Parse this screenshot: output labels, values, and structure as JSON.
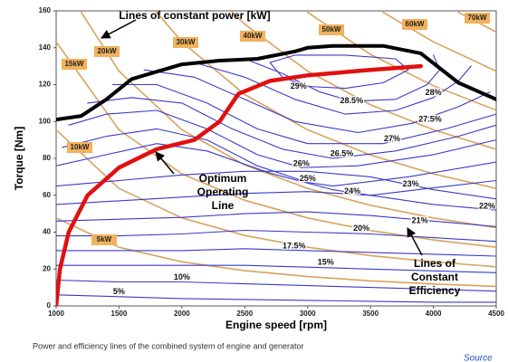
{
  "chart_data": {
    "type": "line",
    "title": "Lines of constant power [kW]",
    "x_label": "Engine speed [rpm]",
    "y_label": "Torque [Nm]",
    "caption": "Power and efficiency lines of the combined system of engine and generator",
    "source": "Source",
    "xlim": [
      1000,
      4500
    ],
    "ylim": [
      0,
      160
    ],
    "xticks": [
      1000,
      1500,
      2000,
      2500,
      3000,
      3500,
      4000,
      4500
    ],
    "yticks": [
      0,
      20,
      40,
      60,
      80,
      100,
      120,
      140,
      160
    ],
    "annotations": [
      [
        "Optimum",
        "Operating",
        "Line"
      ],
      [
        "Lines of",
        "Constant",
        "Efficiency"
      ]
    ],
    "max_torque": {
      "color": "#000000",
      "x": [
        1000,
        1200,
        1400,
        1600,
        1800,
        2000,
        2300,
        2600,
        2900,
        3000,
        3200,
        3600,
        3900,
        4200,
        4500
      ],
      "values": [
        101,
        103,
        112,
        123,
        127,
        131,
        133,
        134,
        138,
        140,
        141,
        141,
        137,
        121,
        112
      ]
    },
    "optimum_line": {
      "color": "#e01010",
      "x": [
        1000,
        1030,
        1100,
        1250,
        1500,
        1800,
        2100,
        2300,
        2450,
        2700,
        3000,
        3500,
        3900
      ],
      "values": [
        0,
        20,
        40,
        60,
        75,
        85,
        90,
        100,
        115,
        122,
        125,
        128,
        130
      ]
    },
    "power_lines": [
      {
        "name": "5kW",
        "color": "#d9a35c",
        "x": [
          1000,
          1500,
          2000,
          2500,
          3000,
          3500,
          4000,
          4500
        ],
        "values": [
          47.7,
          31.8,
          23.9,
          19.1,
          15.9,
          13.6,
          11.9,
          10.6
        ]
      },
      {
        "name": "10kW",
        "color": "#d9a35c",
        "x": [
          1000,
          1500,
          2000,
          2500,
          3000,
          3500,
          4000,
          4500
        ],
        "values": [
          95.5,
          63.7,
          47.7,
          38.2,
          31.8,
          27.3,
          23.9,
          21.2
        ]
      },
      {
        "name": "15kW",
        "color": "#d9a35c",
        "x": [
          1000,
          1500,
          2000,
          2500,
          3000,
          3500,
          4000,
          4500
        ],
        "values": [
          143.2,
          95.5,
          71.6,
          57.3,
          47.7,
          40.9,
          35.8,
          31.8
        ]
      },
      {
        "name": "20kW",
        "color": "#d9a35c",
        "x": [
          1200,
          1500,
          2000,
          2500,
          3000,
          3500,
          4000,
          4500
        ],
        "values": [
          159.2,
          127.3,
          95.5,
          76.4,
          63.7,
          54.6,
          47.7,
          42.4
        ]
      },
      {
        "name": "30kW",
        "color": "#d9a35c",
        "x": [
          1800,
          2000,
          2500,
          3000,
          3500,
          4000,
          4500
        ],
        "values": [
          159.2,
          143.2,
          114.6,
          95.5,
          81.8,
          71.6,
          63.7
        ]
      },
      {
        "name": "40kW",
        "color": "#d9a35c",
        "x": [
          2400,
          2500,
          3000,
          3500,
          4000,
          4500
        ],
        "values": [
          159.2,
          152.8,
          127.3,
          109.1,
          95.5,
          84.9
        ]
      },
      {
        "name": "50kW",
        "color": "#d9a35c",
        "x": [
          3000,
          3500,
          4000,
          4500
        ],
        "values": [
          159.2,
          136.4,
          119.4,
          106.1
        ]
      },
      {
        "name": "60kW",
        "color": "#d9a35c",
        "x": [
          3600,
          4000,
          4500
        ],
        "values": [
          159.2,
          143.2,
          127.3
        ]
      },
      {
        "name": "70kW",
        "color": "#d9a35c",
        "x": [
          4200,
          4500
        ],
        "values": [
          159.2,
          148.5
        ]
      }
    ],
    "efficiency_lines": [
      {
        "name": "5%",
        "color": "#3a3ac8",
        "x": [
          1000,
          1500,
          2000,
          2500,
          3000,
          3500,
          4000,
          4500
        ],
        "values": [
          6,
          5,
          4,
          3.5,
          3,
          2.5,
          2,
          2
        ]
      },
      {
        "name": "10%",
        "color": "#3a3ac8",
        "x": [
          1000,
          1500,
          2000,
          2500,
          3000,
          3500,
          4000,
          4500
        ],
        "values": [
          14,
          13,
          13,
          12,
          11,
          10,
          9,
          8
        ]
      },
      {
        "name": "15%",
        "color": "#3a3ac8",
        "x": [
          1000,
          1500,
          2000,
          2500,
          3000,
          3500,
          4000,
          4500
        ],
        "values": [
          22,
          22,
          22,
          22,
          21,
          20,
          19,
          18
        ]
      },
      {
        "name": "17.5%",
        "color": "#3a3ac8",
        "x": [
          1000,
          1500,
          2000,
          2500,
          3000,
          3500,
          4000,
          4500
        ],
        "values": [
          30,
          30,
          30,
          31,
          30,
          29,
          28,
          27
        ]
      },
      {
        "name": "20%",
        "color": "#3a3ac8",
        "x": [
          1000,
          1500,
          2000,
          2500,
          3000,
          3500,
          4000,
          4500
        ],
        "values": [
          38,
          38,
          39,
          41,
          40,
          39,
          37,
          35
        ]
      },
      {
        "name": "21%",
        "color": "#3a3ac8",
        "x": [
          1000,
          1500,
          2000,
          2500,
          3000,
          3500,
          4000,
          4500
        ],
        "values": [
          46,
          47,
          48,
          50,
          51,
          49,
          46,
          43
        ]
      },
      {
        "name": "22%",
        "color": "#3a3ac8",
        "x": [
          1000,
          1500,
          2000,
          2500,
          3000,
          3500,
          4000,
          4500
        ],
        "values": [
          55,
          57,
          59,
          61,
          62,
          60,
          55,
          52
        ]
      },
      {
        "name": "23%",
        "color": "#3a3ac8",
        "x": [
          1000,
          1500,
          2000,
          2500,
          3000,
          3500,
          4000,
          4500
        ],
        "values": [
          65,
          68,
          71,
          73,
          73,
          70,
          63,
          58
        ]
      },
      {
        "name": "24%",
        "color": "#3a3ac8",
        "x": [
          1000,
          1400,
          1800,
          2200,
          2700,
          3200,
          3500,
          4000,
          4500
        ],
        "values": [
          76,
          82,
          88,
          84,
          72,
          63,
          60,
          64,
          68
        ]
      },
      {
        "name": "25%",
        "color": "#3a3ac8",
        "x": [
          1050,
          1400,
          1800,
          2200,
          2600,
          3000,
          3200,
          3800,
          4500
        ],
        "values": [
          86,
          92,
          96,
          90,
          76,
          67,
          65,
          70,
          78
        ]
      },
      {
        "name": "26%",
        "color": "#3a3ac8",
        "x": [
          1100,
          1400,
          1800,
          2200,
          2600,
          2950,
          3400,
          4000,
          4500
        ],
        "values": [
          98,
          104,
          106,
          96,
          82,
          75,
          76,
          82,
          90
        ]
      },
      {
        "name": "26.5%",
        "color": "#3a3ac8",
        "x": [
          1250,
          1600,
          2000,
          2400,
          2800,
          3200,
          3700,
          4200,
          4500
        ],
        "values": [
          110,
          113,
          110,
          96,
          85,
          80,
          84,
          92,
          98
        ]
      },
      {
        "name": "27%",
        "color": "#3a3ac8",
        "x": [
          1450,
          1800,
          2200,
          2600,
          3000,
          3600,
          4100,
          4500
        ],
        "values": [
          120,
          120,
          110,
          96,
          88,
          88,
          96,
          104
        ]
      },
      {
        "name": "27.5%",
        "color": "#3a3ac8",
        "x": [
          1700,
          2100,
          2500,
          2900,
          3400,
          3830,
          4200,
          4450
        ],
        "values": [
          128,
          124,
          112,
          100,
          94,
          99,
          108,
          116
        ]
      },
      {
        "name": "28%",
        "color": "#3a3ac8",
        "x": [
          2100,
          2500,
          2900,
          3300,
          3700,
          4000,
          4200,
          4300
        ],
        "values": [
          132,
          124,
          112,
          104,
          106,
          113,
          122,
          130
        ]
      },
      {
        "name": "28.5%",
        "color": "#3a3ac8",
        "x": [
          2500,
          2800,
          3100,
          3350,
          3700,
          3950,
          4050,
          4000
        ],
        "values": [
          134,
          126,
          116,
          111,
          112,
          120,
          128,
          136
        ]
      },
      {
        "name": "29%",
        "color": "#3a3ac8",
        "x": [
          2700,
          2800,
          3000,
          3300,
          3600,
          3800,
          3700,
          3300,
          2900,
          2700
        ],
        "values": [
          132,
          124,
          119,
          118,
          121,
          128,
          134,
          136,
          136,
          132
        ]
      }
    ]
  }
}
